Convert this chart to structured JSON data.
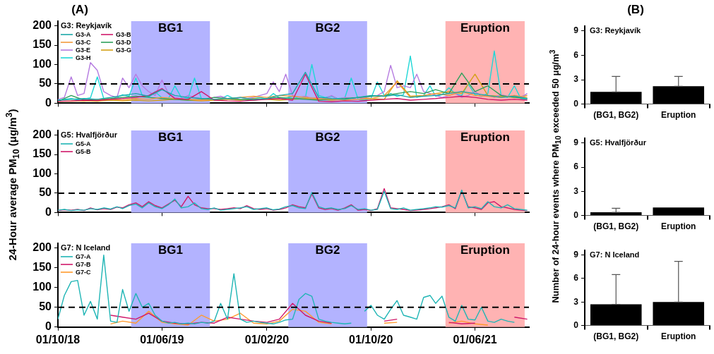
{
  "chart_data": [
    {
      "type": "line",
      "title": "(A)",
      "legend_title": "G3: Reykjavík",
      "legend": "top left",
      "xlim": [
        "2018-10-01",
        "2021-10-05"
      ],
      "ylim": [
        0,
        212
      ],
      "yticks": [
        0,
        50,
        100,
        150,
        200
      ],
      "xticks": [
        {
          "value": "2018-10-01",
          "label": null
        },
        {
          "value": "2019-06-01",
          "label": null
        },
        {
          "value": "2020-02-01",
          "label": null
        },
        {
          "value": "2020-10-01",
          "label": null
        },
        {
          "value": "2021-06-01",
          "label": null
        }
      ],
      "tick_labels": "y",
      "bands": [
        {
          "axis": "x",
          "from": "2019-03-21",
          "to": "2019-09-21",
          "label": "BG1",
          "color": "#b3b3ff"
        },
        {
          "axis": "x",
          "from": "2020-03-22",
          "to": "2020-09-22",
          "label": "BG2",
          "color": "#b3b3ff"
        },
        {
          "axis": "x",
          "from": "2021-03-24",
          "to": "2021-09-25",
          "label": "Eruption",
          "color": "#ffb3b3"
        }
      ],
      "ref_lines": [
        {
          "axis": "y",
          "value": 50,
          "color": "#000000",
          "line_style": "dashed"
        }
      ],
      "x": [
        "2018-10-01",
        "2018-10-16",
        "2018-11-01",
        "2018-11-16",
        "2018-12-01",
        "2018-12-16",
        "2019-01-01",
        "2019-01-16",
        "2019-02-01",
        "2019-02-16",
        "2019-03-01",
        "2019-03-16",
        "2019-04-01",
        "2019-04-16",
        "2019-05-01",
        "2019-05-16",
        "2019-06-01",
        "2019-06-16",
        "2019-07-01",
        "2019-07-16",
        "2019-08-01",
        "2019-08-16",
        "2019-09-01",
        "2019-09-16",
        "2019-10-01",
        "2019-10-16",
        "2019-11-01",
        "2019-11-16",
        "2019-12-01",
        "2019-12-16",
        "2020-01-01",
        "2020-01-16",
        "2020-02-01",
        "2020-02-16",
        "2020-03-01",
        "2020-03-16",
        "2020-04-01",
        "2020-04-16",
        "2020-05-01",
        "2020-05-16",
        "2020-06-01",
        "2020-06-16",
        "2020-07-01",
        "2020-07-16",
        "2020-08-01",
        "2020-08-16",
        "2020-09-01",
        "2020-09-16",
        "2020-10-01",
        "2020-10-16",
        "2020-11-01",
        "2020-11-16",
        "2020-12-01",
        "2020-12-16",
        "2021-01-01",
        "2021-01-16",
        "2021-02-01",
        "2021-02-16",
        "2021-03-01",
        "2021-03-16",
        "2021-04-01",
        "2021-04-16",
        "2021-05-01",
        "2021-05-16",
        "2021-06-01",
        "2021-06-16",
        "2021-07-01",
        "2021-07-16",
        "2021-08-01",
        "2021-08-16",
        "2021-09-01",
        "2021-09-16",
        "2021-10-01"
      ],
      "series": [
        {
          "name": "G3-A",
          "color": "#1aa8a8",
          "x": [
            "2018-10-01",
            "2018-11-01",
            "2018-12-01",
            "2019-01-01",
            "2019-02-01",
            "2019-03-01",
            "2019-04-01",
            "2019-05-01",
            "2019-06-01",
            "2019-07-01",
            "2019-08-01",
            "2019-09-01",
            "2019-10-01",
            "2019-11-01",
            "2019-12-01",
            "2020-01-01",
            "2020-02-01",
            "2020-03-01",
            "2020-04-01",
            "2020-05-01",
            "2020-06-01",
            "2020-07-01",
            "2020-08-01",
            "2020-09-01",
            "2020-10-01",
            "2020-11-01",
            "2020-12-01",
            "2021-01-01",
            "2021-02-01",
            "2021-03-01",
            "2021-04-01",
            "2021-05-01",
            "2021-06-01",
            "2021-07-01",
            "2021-08-01",
            "2021-09-01",
            "2021-10-01"
          ],
          "values": [
            8,
            10,
            12,
            10,
            15,
            20,
            25,
            18,
            35,
            20,
            15,
            12,
            10,
            12,
            15,
            10,
            12,
            20,
            25,
            80,
            15,
            12,
            10,
            15,
            20,
            18,
            22,
            15,
            18,
            20,
            25,
            30,
            25,
            20,
            15,
            18,
            12
          ]
        },
        {
          "name": "G3-B",
          "color": "#d0186a",
          "x": [
            "2018-10-01",
            "2018-11-01",
            "2018-12-01",
            "2019-01-01",
            "2019-02-01",
            "2019-03-01",
            "2019-04-01",
            "2019-05-01",
            "2019-06-01",
            "2019-07-01",
            "2019-08-01",
            "2019-09-01",
            "2019-10-01",
            "2019-11-01",
            "2019-12-01",
            "2020-01-01",
            "2020-02-01",
            "2020-03-01",
            "2020-04-01",
            "2020-05-01",
            "2020-06-01",
            "2020-07-01",
            "2020-08-01",
            "2020-09-01",
            "2020-10-01",
            "2020-11-01",
            "2020-12-01",
            "2021-01-01",
            "2021-02-01",
            "2021-03-01",
            "2021-04-01",
            "2021-05-01",
            "2021-06-01",
            "2021-07-01",
            "2021-08-01",
            "2021-09-01",
            "2021-10-01"
          ],
          "values": [
            5,
            6,
            8,
            7,
            10,
            12,
            15,
            20,
            38,
            12,
            10,
            30,
            8,
            6,
            5,
            8,
            10,
            12,
            8,
            75,
            5,
            4,
            6,
            5,
            8,
            10,
            12,
            8,
            10,
            12,
            15,
            18,
            15,
            10,
            8,
            10,
            8
          ]
        },
        {
          "name": "G3-C",
          "color": "#f39a3a",
          "x": [
            "2018-10-01",
            "2018-11-01",
            "2018-12-01",
            "2019-01-01",
            "2019-02-01",
            "2019-03-01",
            "2019-04-01",
            "2019-05-01",
            "2019-06-01",
            "2019-07-01",
            "2019-08-01",
            "2019-09-01",
            "2019-10-01",
            "2019-11-01",
            "2019-12-01",
            "2020-01-01",
            "2020-02-01",
            "2020-03-01",
            "2020-04-01",
            "2020-05-01",
            "2020-06-01",
            "2020-07-01",
            "2020-08-01",
            "2020-09-01",
            "2020-10-01",
            "2020-11-01",
            "2020-12-01",
            "2021-01-01",
            "2021-02-01",
            "2021-03-01",
            "2021-04-01",
            "2021-05-01",
            "2021-06-01",
            "2021-07-01",
            "2021-08-01",
            "2021-09-01",
            "2021-10-01"
          ],
          "values": [
            5,
            6,
            5,
            8,
            10,
            8,
            12,
            10,
            15,
            12,
            10,
            8,
            10,
            12,
            15,
            18,
            15,
            20,
            18,
            15,
            12,
            10,
            8,
            10,
            12,
            20,
            55,
            15,
            20,
            25,
            20,
            30,
            20,
            18,
            15,
            20,
            15
          ]
        },
        {
          "name": "G3-D",
          "color": "#2ea05a",
          "x": [
            "2018-10-01",
            "2018-11-01",
            "2018-12-01",
            "2019-01-01",
            "2019-02-01",
            "2019-03-01",
            "2019-04-01",
            "2019-05-01",
            "2019-06-01",
            "2019-07-01",
            "2019-08-01",
            "2019-09-01",
            "2019-10-01",
            "2019-11-01",
            "2019-12-01",
            "2020-01-01",
            "2020-02-01",
            "2020-03-01",
            "2020-04-01",
            "2020-05-01",
            "2020-06-01",
            "2020-07-01",
            "2020-08-01",
            "2020-09-01",
            "2020-10-01",
            "2020-11-01",
            "2020-12-01",
            "2021-01-01",
            "2021-02-01",
            "2021-03-01",
            "2021-04-01",
            "2021-05-01",
            "2021-06-01",
            "2021-07-01",
            "2021-08-01",
            "2021-09-01",
            "2021-10-01"
          ],
          "values": [
            5,
            20,
            8,
            10,
            12,
            15,
            18,
            15,
            12,
            10,
            8,
            10,
            15,
            12,
            10,
            8,
            12,
            15,
            12,
            10,
            8,
            10,
            12,
            15,
            18,
            20,
            25,
            30,
            25,
            35,
            25,
            78,
            30,
            45,
            20,
            15,
            12
          ]
        },
        {
          "name": "G3-E",
          "color": "#b57be0",
          "values": [
            10,
            15,
            68,
            20,
            25,
            105,
            85,
            30,
            20,
            15,
            65,
            40,
            75,
            45,
            30,
            20,
            60,
            25,
            15,
            12,
            20,
            15,
            12,
            10,
            15,
            18,
            12,
            10,
            15,
            12,
            15,
            20,
            25,
            55,
            30,
            75,
            20,
            15,
            18,
            12,
            15,
            12,
            20,
            10,
            15,
            12,
            10,
            15,
            18,
            20,
            30,
            98,
            40,
            45,
            40,
            75,
            30,
            25,
            20,
            15,
            20,
            25,
            15,
            20,
            30,
            18,
            20,
            15,
            22,
            18,
            20,
            15,
            25
          ]
        },
        {
          "name": "G3-G",
          "color": "#d4a017",
          "x": [
            "2018-10-01",
            "2018-11-01",
            "2018-12-01",
            "2019-01-01",
            "2019-02-01",
            "2019-03-01",
            "2019-04-01",
            "2019-05-01",
            "2019-06-01",
            "2019-07-01",
            "2019-08-01",
            "2019-09-01",
            "2019-10-01",
            "2019-11-01",
            "2019-12-01",
            "2020-01-01",
            "2020-02-01",
            "2020-03-01",
            "2020-04-01",
            "2020-05-01",
            "2020-06-01",
            "2020-07-01",
            "2020-08-01",
            "2020-09-01",
            "2020-10-01",
            "2020-11-01",
            "2020-12-01",
            "2021-01-01",
            "2021-02-01",
            "2021-03-01",
            "2021-04-01",
            "2021-05-01",
            "2021-06-01",
            "2021-07-01",
            "2021-08-01",
            "2021-09-01",
            "2021-10-01"
          ],
          "values": [
            5,
            5,
            6,
            5,
            8,
            6,
            8,
            6,
            8,
            10,
            8,
            6,
            8,
            10,
            8,
            12,
            10,
            8,
            10,
            12,
            10,
            8,
            10,
            15,
            12,
            10,
            58,
            18,
            20,
            25,
            30,
            25,
            75,
            20,
            18,
            15,
            20
          ]
        },
        {
          "name": "G3-H",
          "color": "#1fd7d7",
          "values": [
            8,
            10,
            12,
            9,
            11,
            14,
            68,
            12,
            10,
            15,
            22,
            18,
            65,
            20,
            16,
            30,
            14,
            12,
            45,
            15,
            13,
            65,
            12,
            10,
            9,
            11,
            20,
            12,
            10,
            9,
            12,
            15,
            11,
            25,
            14,
            13,
            18,
            12,
            15,
            100,
            20,
            15,
            18,
            12,
            14,
            65,
            10,
            8,
            12,
            55,
            20,
            25,
            18,
            22,
            122,
            15,
            20,
            45,
            18,
            22,
            40,
            25,
            20,
            50,
            22,
            18,
            25,
            135,
            20,
            15,
            45,
            12,
            10
          ]
        }
      ]
    },
    {
      "type": "bar",
      "title": "(B)",
      "annotations": [
        "G3: Reykjavík"
      ],
      "categories": [
        "(BG1, BG2)",
        "Eruption"
      ],
      "values": [
        1.5,
        2.2
      ],
      "errors": [
        [
          1.5,
          3.4
        ],
        [
          2.2,
          3.4
        ]
      ],
      "color": "#000000",
      "ylim": [
        0,
        9.6
      ],
      "yticks": [
        0,
        3,
        6,
        9
      ]
    },
    {
      "type": "line",
      "legend_title": "G5: Hvalfjörður",
      "legend": "top left",
      "ylabel": "24-Hour average PM$_{10}$ (μg/m$^{3}$)",
      "xlim": [
        "2018-10-01",
        "2021-10-05"
      ],
      "ylim": [
        0,
        212
      ],
      "yticks": [
        0,
        50,
        100,
        150,
        200
      ],
      "xticks": [
        {
          "value": "2018-10-01",
          "label": null
        },
        {
          "value": "2019-06-01",
          "label": null
        },
        {
          "value": "2020-02-01",
          "label": null
        },
        {
          "value": "2020-10-01",
          "label": null
        },
        {
          "value": "2021-06-01",
          "label": null
        }
      ],
      "tick_labels": "y",
      "bands": [
        {
          "axis": "x",
          "from": "2019-03-21",
          "to": "2019-09-21",
          "label": "BG1",
          "color": "#b3b3ff"
        },
        {
          "axis": "x",
          "from": "2020-03-22",
          "to": "2020-09-22",
          "label": "BG2",
          "color": "#b3b3ff"
        },
        {
          "axis": "x",
          "from": "2021-03-24",
          "to": "2021-09-25",
          "label": "Eruption",
          "color": "#ffb3b3"
        }
      ],
      "ref_lines": [
        {
          "axis": "y",
          "value": 50,
          "color": "#000000",
          "line_style": "dashed"
        }
      ],
      "x": [
        "2018-10-01",
        "2018-10-16",
        "2018-11-01",
        "2018-11-16",
        "2018-12-01",
        "2018-12-16",
        "2019-01-01",
        "2019-01-16",
        "2019-02-01",
        "2019-02-16",
        "2019-03-01",
        "2019-03-16",
        "2019-04-01",
        "2019-04-16",
        "2019-05-01",
        "2019-05-16",
        "2019-06-01",
        "2019-06-16",
        "2019-07-01",
        "2019-07-16",
        "2019-08-01",
        "2019-08-16",
        "2019-09-01",
        "2019-09-16",
        "2019-10-01",
        "2019-10-16",
        "2019-11-01",
        "2019-11-16",
        "2019-12-01",
        "2019-12-16",
        "2020-01-01",
        "2020-01-16",
        "2020-02-01",
        "2020-02-16",
        "2020-03-01",
        "2020-03-16",
        "2020-04-01",
        "2020-04-16",
        "2020-05-01",
        "2020-05-16",
        "2020-06-01",
        "2020-06-16",
        "2020-07-01",
        "2020-07-16",
        "2020-08-01",
        "2020-08-16",
        "2020-09-01",
        "2020-09-16",
        "2020-10-01",
        "2020-10-16",
        "2020-11-01",
        "2020-11-16",
        "2020-12-01",
        "2020-12-16",
        "2021-01-01",
        "2021-01-16",
        "2021-02-01",
        "2021-02-16",
        "2021-03-01",
        "2021-03-16",
        "2021-04-01",
        "2021-04-16",
        "2021-05-01",
        "2021-05-16",
        "2021-06-01",
        "2021-06-16",
        "2021-07-01",
        "2021-07-16",
        "2021-08-01",
        "2021-08-16",
        "2021-09-01",
        "2021-09-16",
        "2021-10-01"
      ],
      "series": [
        {
          "name": "G5-A",
          "color": "#1fb5b5",
          "values": [
            6,
            8,
            5,
            7,
            6,
            10,
            8,
            12,
            9,
            15,
            10,
            18,
            22,
            12,
            25,
            15,
            10,
            20,
            35,
            12,
            15,
            25,
            10,
            8,
            12,
            6,
            8,
            10,
            12,
            15,
            8,
            10,
            12,
            7,
            9,
            15,
            18,
            12,
            10,
            52,
            15,
            10,
            12,
            8,
            10,
            18,
            8,
            10,
            6,
            8,
            55,
            10,
            8,
            12,
            6,
            8,
            10,
            12,
            15,
            14,
            18,
            12,
            58,
            12,
            15,
            10,
            28,
            15,
            12,
            20,
            10,
            8,
            6
          ]
        },
        {
          "name": "G5-B",
          "color": "#d0186a",
          "values": [
            5,
            7,
            6,
            8,
            5,
            12,
            7,
            10,
            8,
            14,
            12,
            20,
            25,
            15,
            28,
            18,
            12,
            22,
            32,
            15,
            42,
            20,
            12,
            10,
            10,
            8,
            10,
            12,
            10,
            18,
            10,
            8,
            10,
            6,
            8,
            12,
            20,
            15,
            12,
            48,
            12,
            8,
            10,
            6,
            12,
            20,
            6,
            8,
            5,
            10,
            62,
            12,
            10,
            8,
            5,
            6,
            8,
            10,
            12,
            15,
            20,
            10,
            56,
            15,
            12,
            8,
            25,
            28,
            15,
            12,
            8,
            6,
            5
          ]
        }
      ]
    },
    {
      "type": "bar",
      "annotations": [
        "G5: Hvalfjörður"
      ],
      "ylabel": "Number of 24-hour events where PM$_{10}$ exceeded 50 μg/m$^{3}$",
      "categories": [
        "(BG1, BG2)",
        "Eruption"
      ],
      "values": [
        0.4,
        1.0
      ],
      "errors": [
        [
          0.4,
          0.9
        ],
        null
      ],
      "color": "#000000",
      "ylim": [
        0,
        9.6
      ],
      "yticks": [
        0,
        3,
        6,
        9
      ]
    },
    {
      "type": "line",
      "legend_title": "G7: N Iceland",
      "legend": "top left",
      "xlim": [
        "2018-10-01",
        "2021-10-05"
      ],
      "ylim": [
        0,
        212
      ],
      "yticks": [
        0,
        50,
        100,
        150,
        200
      ],
      "xticks": [
        {
          "value": "2018-10-01",
          "label": "01/10/18"
        },
        {
          "value": "2019-06-01",
          "label": "01/06/19"
        },
        {
          "value": "2020-02-01",
          "label": "01/02/20"
        },
        {
          "value": "2020-10-01",
          "label": "01/10/20"
        },
        {
          "value": "2021-06-01",
          "label": "01/06/21"
        }
      ],
      "bands": [
        {
          "axis": "x",
          "from": "2019-03-21",
          "to": "2019-09-21",
          "label": "BG1",
          "color": "#b3b3ff"
        },
        {
          "axis": "x",
          "from": "2020-03-22",
          "to": "2020-09-22",
          "label": "BG2",
          "color": "#b3b3ff"
        },
        {
          "axis": "x",
          "from": "2021-03-24",
          "to": "2021-09-25",
          "label": "Eruption",
          "color": "#ffb3b3"
        }
      ],
      "ref_lines": [
        {
          "axis": "y",
          "value": 50,
          "color": "#000000",
          "line_style": "dashed"
        }
      ],
      "x": [
        "2018-10-01",
        "2018-10-16",
        "2018-11-01",
        "2018-11-16",
        "2018-12-01",
        "2018-12-16",
        "2019-01-01",
        "2019-01-16",
        "2019-02-01",
        "2019-02-16",
        "2019-03-01",
        "2019-03-16",
        "2019-04-01",
        "2019-04-16",
        "2019-05-01",
        "2019-05-16",
        "2019-06-01",
        "2019-06-16",
        "2019-07-01",
        "2019-07-16",
        "2019-08-01",
        "2019-08-16",
        "2019-09-01",
        "2019-09-16",
        "2019-10-01",
        "2019-10-16",
        "2019-11-01",
        "2019-11-16",
        "2019-12-01",
        "2019-12-16",
        "2020-01-01",
        "2020-01-16",
        "2020-02-01",
        "2020-02-16",
        "2020-03-01",
        "2020-03-16",
        "2020-04-01",
        "2020-04-16",
        "2020-05-01",
        "2020-05-16",
        "2020-06-01",
        "2020-06-16",
        "2020-07-01",
        "2020-07-16",
        "2020-08-01",
        "2020-08-16",
        "2020-09-01",
        "2020-09-16",
        "2020-10-01",
        "2020-10-16",
        "2020-11-01",
        "2020-11-16",
        "2020-12-01",
        "2020-12-16",
        "2021-01-01",
        "2021-01-16",
        "2021-02-01",
        "2021-02-16",
        "2021-03-01",
        "2021-03-16",
        "2021-04-01",
        "2021-04-16",
        "2021-05-01",
        "2021-05-16",
        "2021-06-01",
        "2021-06-16",
        "2021-07-01",
        "2021-07-16",
        "2021-08-01",
        "2021-08-16",
        "2021-09-01"
      ],
      "series": [
        {
          "name": "G7-A",
          "color": "#1fb5b5",
          "values": [
            20,
            80,
            115,
            118,
            30,
            65,
            20,
            182,
            15,
            12,
            95,
            40,
            85,
            50,
            60,
            30,
            15,
            10,
            12,
            8,
            10,
            8,
            12,
            10,
            15,
            60,
            20,
            135,
            20,
            12,
            15,
            12,
            10,
            8,
            12,
            18,
            20,
            70,
            85,
            78,
            20,
            15,
            12,
            10,
            8,
            10,
            null,
            40,
            55,
            30,
            20,
            45,
            67,
            30,
            25,
            20,
            75,
            80,
            60,
            78,
            25,
            15,
            55,
            20,
            18,
            50,
            15,
            12,
            20,
            15,
            12
          ]
        },
        {
          "name": "G7-B",
          "color": "#d0186a",
          "x": [
            "2019-02-01",
            "2019-03-01",
            "2019-04-01",
            "2019-05-01",
            "2019-06-01",
            "2019-07-01",
            "2019-08-01",
            "2019-09-01",
            "2019-10-01",
            "2019-11-01",
            "2019-12-01",
            "2020-01-01",
            "2020-02-01",
            "2020-03-01",
            "2020-04-01",
            "2020-05-01",
            "2020-06-01",
            "2020-07-01",
            "2020-08-01",
            "2020-09-01",
            "2020-10-01",
            "2020-11-01",
            "2020-12-01",
            "2021-01-01",
            "2021-02-01",
            "2021-03-01",
            "2021-04-01",
            "2021-05-01",
            "2021-06-01",
            "2021-07-01",
            "2021-08-01",
            "2021-09-01",
            "2021-10-01"
          ],
          "values": [
            30,
            25,
            20,
            35,
            15,
            10,
            8,
            12,
            10,
            25,
            20,
            15,
            12,
            20,
            60,
            30,
            15,
            10,
            null,
            null,
            null,
            15,
            20,
            null,
            null,
            null,
            12,
            8,
            10,
            null,
            null,
            25,
            20
          ]
        },
        {
          "name": "G7-C",
          "color": "#ff9a2e",
          "x": [
            "2019-02-01",
            "2019-03-01",
            "2019-04-01",
            "2019-05-01",
            "2019-06-01",
            "2019-07-01",
            "2019-08-01",
            "2019-09-01",
            "2019-10-01",
            "2019-11-01",
            "2019-12-01",
            "2020-01-01",
            "2020-02-01",
            "2020-03-01",
            "2020-04-01",
            "2020-05-01",
            "2020-06-01",
            "2020-07-01",
            "2020-08-01",
            "2020-09-01",
            "2020-10-01",
            "2020-11-01",
            "2020-12-01",
            "2021-01-01",
            "2021-02-01",
            "2021-03-01",
            "2021-04-01",
            "2021-05-01",
            "2021-06-01",
            "2021-07-01"
          ],
          "values": [
            8,
            15,
            10,
            40,
            12,
            8,
            5,
            30,
            15,
            20,
            35,
            10,
            8,
            15,
            45,
            40,
            12,
            8,
            null,
            null,
            null,
            10,
            12,
            null,
            null,
            null,
            10,
            15,
            8,
            5
          ]
        }
      ]
    },
    {
      "type": "bar",
      "annotations": [
        "G7: N Iceland"
      ],
      "categories": [
        "(BG1, BG2)",
        "Eruption"
      ],
      "values": [
        2.7,
        3.0
      ],
      "errors": [
        [
          2.7,
          6.5
        ],
        [
          3.0,
          8.2
        ]
      ],
      "color": "#000000",
      "ylim": [
        0,
        9.6
      ],
      "yticks": [
        0,
        3,
        6,
        9
      ]
    }
  ]
}
